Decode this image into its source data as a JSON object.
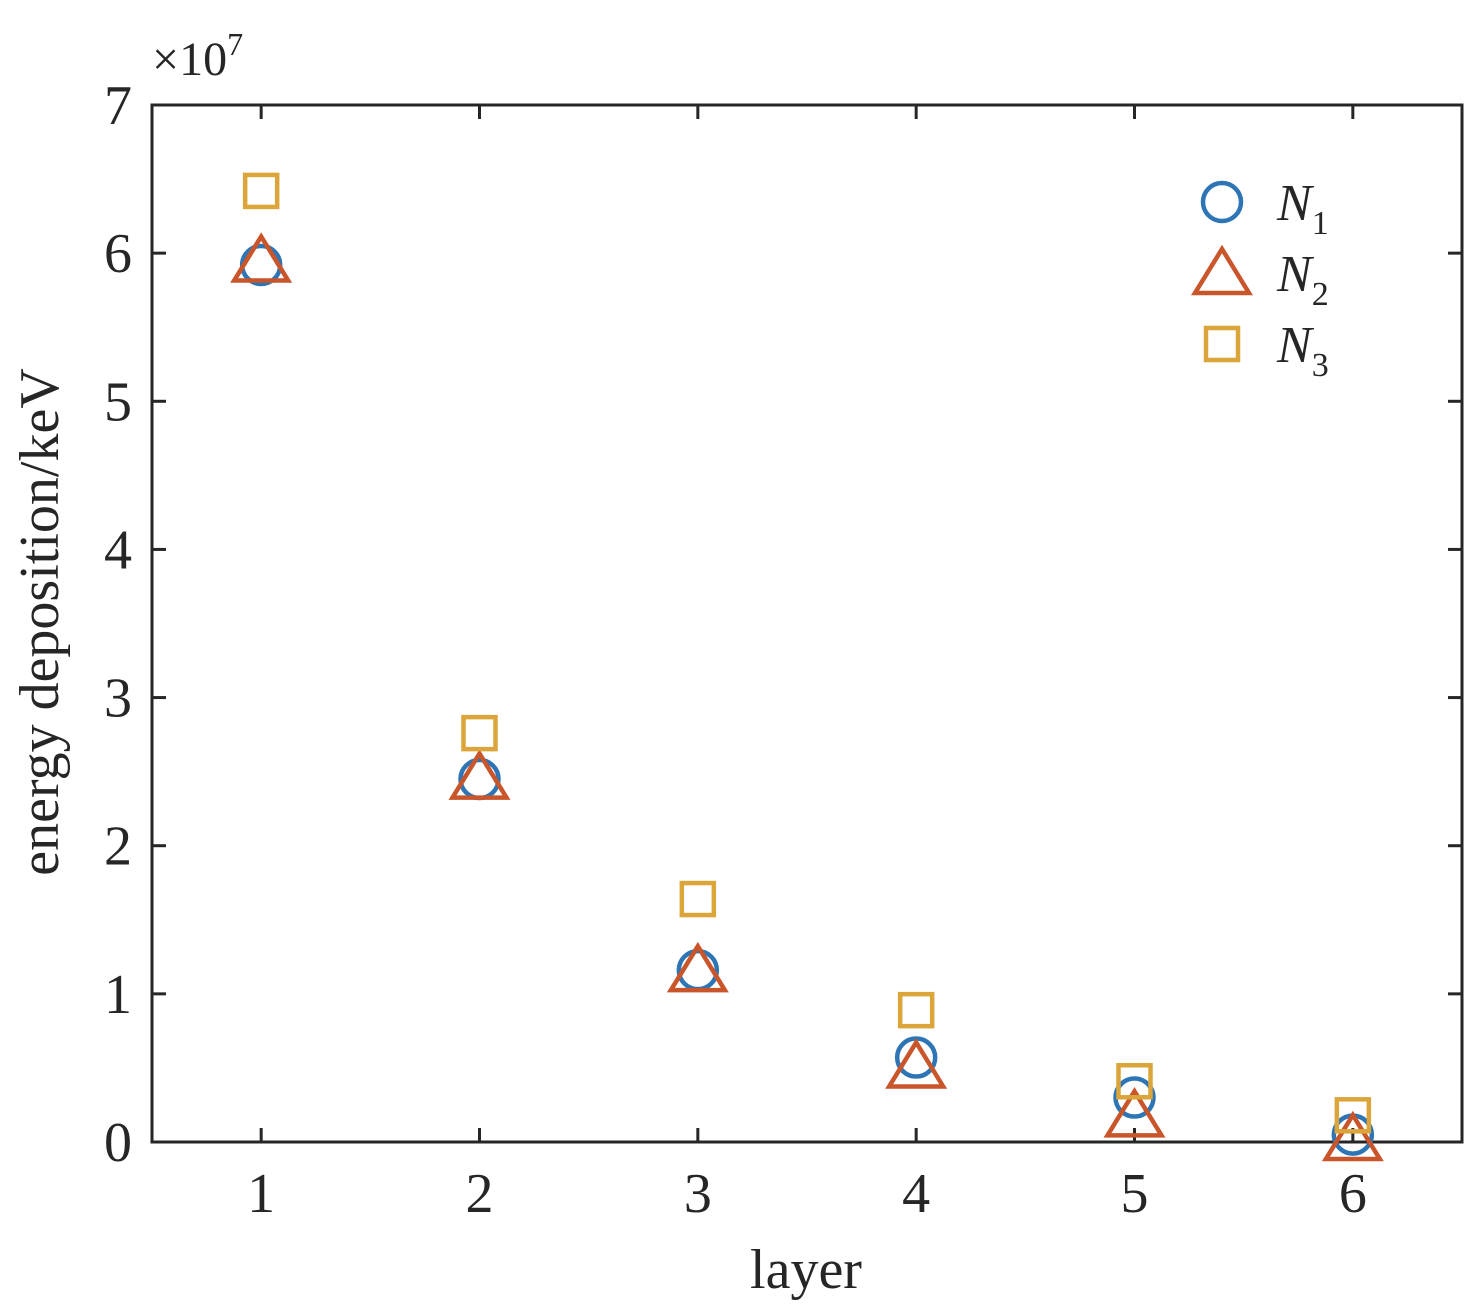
{
  "chart_data": {
    "type": "scatter",
    "xlabel": "layer",
    "ylabel": "energy deposition/keV",
    "y_multiplier": {
      "base": "×10",
      "exponent": "7"
    },
    "xlim": [
      0.5,
      6.5
    ],
    "ylim": [
      0,
      7
    ],
    "xticks": [
      1,
      2,
      3,
      4,
      5,
      6
    ],
    "yticks": [
      0,
      1,
      2,
      3,
      4,
      5,
      6,
      7
    ],
    "x": [
      1,
      2,
      3,
      4,
      5,
      6
    ],
    "grid": false,
    "legend_position": "top-right",
    "series": [
      {
        "name": "N",
        "subscript": "1",
        "marker": "circle",
        "color": "#2e75b6",
        "values": [
          5.92,
          2.45,
          1.16,
          0.57,
          0.3,
          0.05
        ]
      },
      {
        "name": "N",
        "subscript": "2",
        "marker": "triangle",
        "color": "#c9552b",
        "values": [
          5.95,
          2.46,
          1.16,
          0.51,
          0.18,
          0.02
        ]
      },
      {
        "name": "N",
        "subscript": "3",
        "marker": "square",
        "color": "#dba53a",
        "values": [
          6.42,
          2.76,
          1.64,
          0.89,
          0.41,
          0.18
        ]
      }
    ]
  }
}
